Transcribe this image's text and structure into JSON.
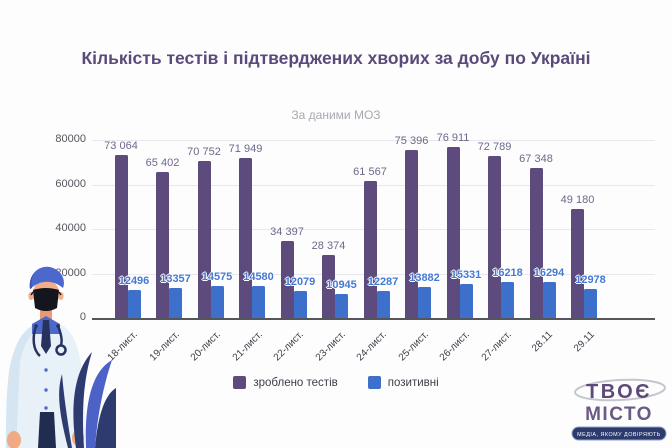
{
  "header": {
    "title": "Кількість тестів і підтверджених хворих за добу по Україні",
    "subtitle": "За даними МОЗ"
  },
  "chart_data": {
    "type": "bar",
    "categories": [
      "18-лист.",
      "19-лист.",
      "20-лист.",
      "21-лист.",
      "22-лист.",
      "23-лист.",
      "24-лист.",
      "25-лист.",
      "26-лист.",
      "27-лист.",
      "28.11",
      "29.11"
    ],
    "series": [
      {
        "name": "зроблено тестів",
        "color": "#5e4b7d",
        "values": [
          73064,
          65402,
          70752,
          71949,
          34397,
          28374,
          61567,
          75396,
          76911,
          72789,
          67348,
          49180
        ],
        "labels": [
          "73 064",
          "65 402",
          "70 752",
          "71 949",
          "34 397",
          "28 374",
          "61 567",
          "75 396",
          "76 911",
          "72 789",
          "67 348",
          "49 180"
        ]
      },
      {
        "name": "позитивні",
        "color": "#3d70ca",
        "values": [
          12496,
          13357,
          14575,
          14580,
          12079,
          10945,
          12287,
          13882,
          15331,
          16218,
          16294,
          12978
        ],
        "labels": [
          "12496",
          "13357",
          "14575",
          "14580",
          "12079",
          "10945",
          "12287",
          "13882",
          "15331",
          "16218",
          "16294",
          "12978"
        ]
      }
    ],
    "xlabel": "",
    "ylabel": "",
    "ylim": [
      0,
      80000
    ],
    "yticks": [
      0,
      20000,
      40000,
      60000,
      80000
    ],
    "grid": true,
    "legend_position": "bottom"
  },
  "logo": {
    "line1": "ТВОЄ",
    "line2": "МІСТО",
    "tagline": "МЕДІА, ЯКОМУ ДОВІРЯЮТЬ"
  },
  "colors": {
    "title": "#5b4a79",
    "subtitle": "#a8a8b0",
    "tests_bar": "#5e4b7d",
    "positive_bar": "#3d70ca"
  }
}
